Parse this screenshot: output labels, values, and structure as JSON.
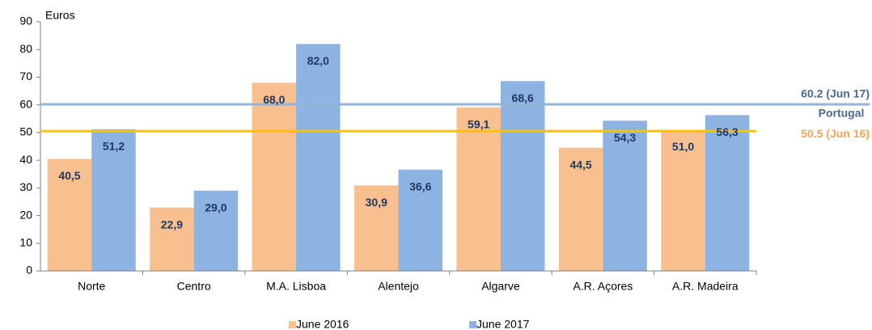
{
  "chart_data": {
    "type": "bar",
    "y_label": "Euros",
    "categories": [
      "Norte",
      "Centro",
      "M.A. Lisboa",
      "Alentejo",
      "Algarve",
      "A.R. Açores",
      "A.R. Madeira"
    ],
    "series": [
      {
        "name": "June 2016",
        "color": "#f9c08f",
        "values": [
          40.5,
          22.9,
          68.0,
          30.9,
          59.1,
          44.5,
          51.0
        ],
        "value_labels": [
          "40,5",
          "22,9",
          "68,0",
          "30,9",
          "59,1",
          "44,5",
          "51,0"
        ]
      },
      {
        "name": "June 2017",
        "color": "#8db3e2",
        "values": [
          51.2,
          29.0,
          82.0,
          36.6,
          68.6,
          54.3,
          56.3
        ],
        "value_labels": [
          "51,2",
          "29,0",
          "82,0",
          "36,6",
          "68,6",
          "54,3",
          "56,3"
        ]
      }
    ],
    "reference_lines": [
      {
        "value": 60.2,
        "label": "60.2 (Jun 17)",
        "color": "#95b3d7",
        "label_color": "#4a6a94"
      },
      {
        "value": 50.5,
        "label": "50.5 (Jun 16)",
        "color": "#ffc000",
        "label_color": "#f5a55a"
      }
    ],
    "annotation": "Portugal",
    "ylim": [
      0,
      90
    ],
    "yticks": [
      0,
      10,
      20,
      30,
      40,
      50,
      60,
      70,
      80,
      90
    ]
  }
}
